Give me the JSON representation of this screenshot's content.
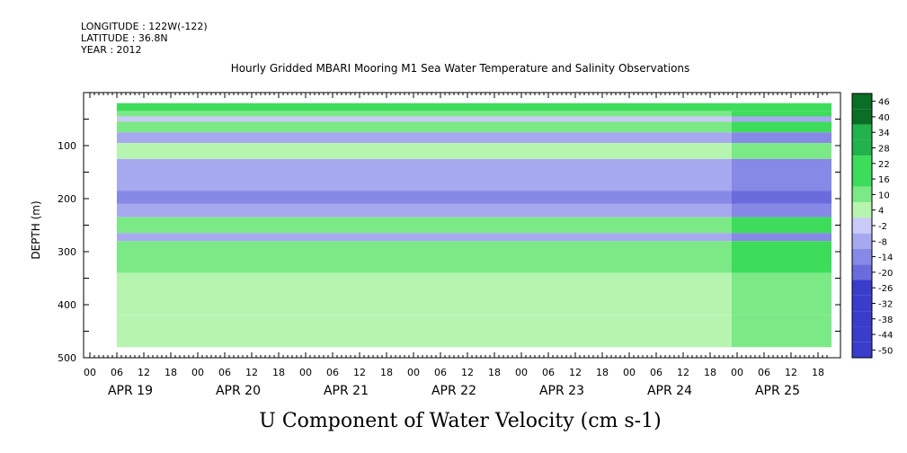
{
  "header": {
    "longitude": "LONGITUDE : 122W(-122)",
    "latitude": "LATITUDE : 36.8N",
    "year": "YEAR : 2012"
  },
  "chart_data": {
    "type": "heatmap",
    "title": "Hourly Gridded MBARI Mooring M1 Sea Water Temperature and Salinity Observations",
    "xlabel": "U Component of Water Velocity (cm s-1)",
    "ylabel": "DEPTH (m)",
    "ylim": [
      500,
      0
    ],
    "y_ticks": [
      100,
      200,
      300,
      400,
      500
    ],
    "x_hour_ticks": [
      "00",
      "06",
      "12",
      "18",
      "00",
      "06",
      "12",
      "18",
      "00",
      "06",
      "12",
      "18",
      "00",
      "06",
      "12",
      "18",
      "00",
      "06",
      "12",
      "18",
      "00",
      "06",
      "12",
      "18",
      "00",
      "06",
      "12",
      "18"
    ],
    "x_date_labels": [
      "APR 19",
      "APR 20",
      "APR 21",
      "APR 22",
      "APR 23",
      "APR 24",
      "APR 25"
    ],
    "colorbar": {
      "levels": [
        "46",
        "40",
        "34",
        "28",
        "22",
        "16",
        "10",
        "4",
        "-2",
        "-8",
        "-14",
        "-20",
        "-26",
        "-32",
        "-38",
        "-44",
        "-50"
      ],
      "low_color": "#000080",
      "high_color": "#006400"
    },
    "data_start": "APR 19 06",
    "data_end": "APR 25 21",
    "depth_bands": [
      {
        "top": 20,
        "bottom": 35,
        "value": 16
      },
      {
        "top": 35,
        "bottom": 45,
        "value": 10
      },
      {
        "top": 45,
        "bottom": 55,
        "value": -2
      },
      {
        "top": 55,
        "bottom": 75,
        "value": 10
      },
      {
        "top": 75,
        "bottom": 95,
        "value": -8
      },
      {
        "top": 95,
        "bottom": 125,
        "value": 4
      },
      {
        "top": 125,
        "bottom": 185,
        "value": -8
      },
      {
        "top": 185,
        "bottom": 210,
        "value": -14
      },
      {
        "top": 210,
        "bottom": 235,
        "value": -8
      },
      {
        "top": 235,
        "bottom": 265,
        "value": 10
      },
      {
        "top": 265,
        "bottom": 280,
        "value": -8
      },
      {
        "top": 280,
        "bottom": 300,
        "value": 10
      },
      {
        "top": 300,
        "bottom": 340,
        "value": 10
      },
      {
        "top": 340,
        "bottom": 420,
        "value": 4
      },
      {
        "top": 420,
        "bottom": 480,
        "value": 4
      }
    ]
  }
}
